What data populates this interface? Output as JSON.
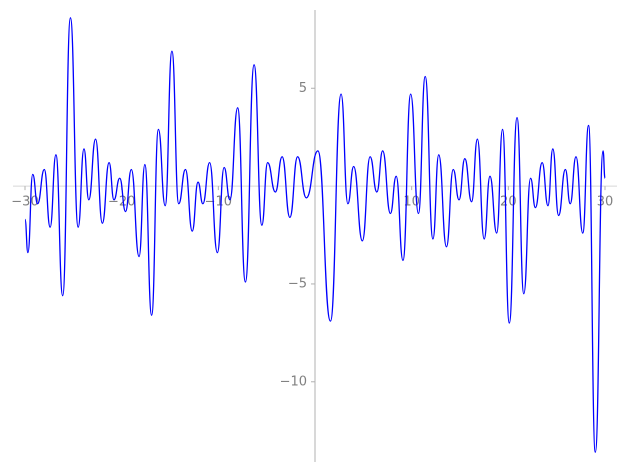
{
  "chart_data": {
    "type": "line",
    "x": [
      -30,
      -29.7,
      -29.2,
      -28.7,
      -28.0,
      -27.4,
      -26.8,
      -26.1,
      -25.3,
      -24.5,
      -23.9,
      -23.4,
      -22.7,
      -22.0,
      -21.3,
      -20.8,
      -20.2,
      -19.6,
      -19.0,
      -18.2,
      -17.6,
      -16.9,
      -16.2,
      -15.5,
      -14.8,
      -14.1,
      -13.4,
      -12.7,
      -12.1,
      -11.6,
      -10.9,
      -10.1,
      -9.4,
      -8.8,
      -8.0,
      -7.2,
      -6.3,
      -5.5,
      -4.9,
      -4.1,
      -3.4,
      -2.6,
      -1.8,
      -0.9,
      0.3,
      1.6,
      2.7,
      3.4,
      4.0,
      4.9,
      5.7,
      6.4,
      7.0,
      7.8,
      8.4,
      9.1,
      9.9,
      10.7,
      11.4,
      12.2,
      12.8,
      13.6,
      14.3,
      14.9,
      15.5,
      16.2,
      16.8,
      17.5,
      18.1,
      18.8,
      19.4,
      20.1,
      20.9,
      21.6,
      22.3,
      22.8,
      23.5,
      24.1,
      24.6,
      25.2,
      25.9,
      26.4,
      27.0,
      27.7,
      28.3,
      29.0,
      29.8,
      30
    ],
    "series": [
      {
        "color": "#0000ff",
        "values": [
          -1.7,
          -3.4,
          0.6,
          -0.9,
          0.85,
          -2.1,
          1.6,
          -5.6,
          8.6,
          -2.1,
          1.9,
          -0.7,
          2.4,
          -1.9,
          1.2,
          -0.7,
          0.4,
          -1.3,
          0.85,
          -3.6,
          1.1,
          -6.6,
          2.9,
          -1.0,
          6.9,
          -0.9,
          0.85,
          -2.3,
          0.2,
          -0.9,
          1.2,
          -3.4,
          0.95,
          -0.7,
          4.0,
          -4.9,
          6.2,
          -2.0,
          1.2,
          -0.3,
          1.5,
          -1.6,
          1.5,
          -0.6,
          1.8,
          -6.9,
          4.7,
          -0.9,
          1.0,
          -2.8,
          1.5,
          -0.3,
          1.8,
          -1.4,
          0.5,
          -3.8,
          4.7,
          -1.4,
          5.6,
          -2.7,
          1.6,
          -3.1,
          0.85,
          -0.7,
          1.4,
          -0.8,
          2.4,
          -2.7,
          0.5,
          -2.4,
          2.9,
          -7.0,
          3.5,
          -5.5,
          0.4,
          -1.1,
          1.2,
          -1.0,
          1.9,
          -1.5,
          0.85,
          -0.9,
          1.5,
          -2.4,
          3.1,
          -13.6,
          1.8,
          0.4
        ]
      }
    ],
    "xlim": [
      -30,
      30
    ],
    "ylim": [
      -14.1,
      9.0
    ],
    "xticks": [
      {
        "value": -30,
        "label": "−30"
      },
      {
        "value": -20,
        "label": "−20"
      },
      {
        "value": -10,
        "label": "−10"
      },
      10,
      20,
      30
    ],
    "yticks": [
      5,
      {
        "value": -5,
        "label": "−5"
      },
      {
        "value": -10,
        "label": "−10"
      }
    ]
  }
}
